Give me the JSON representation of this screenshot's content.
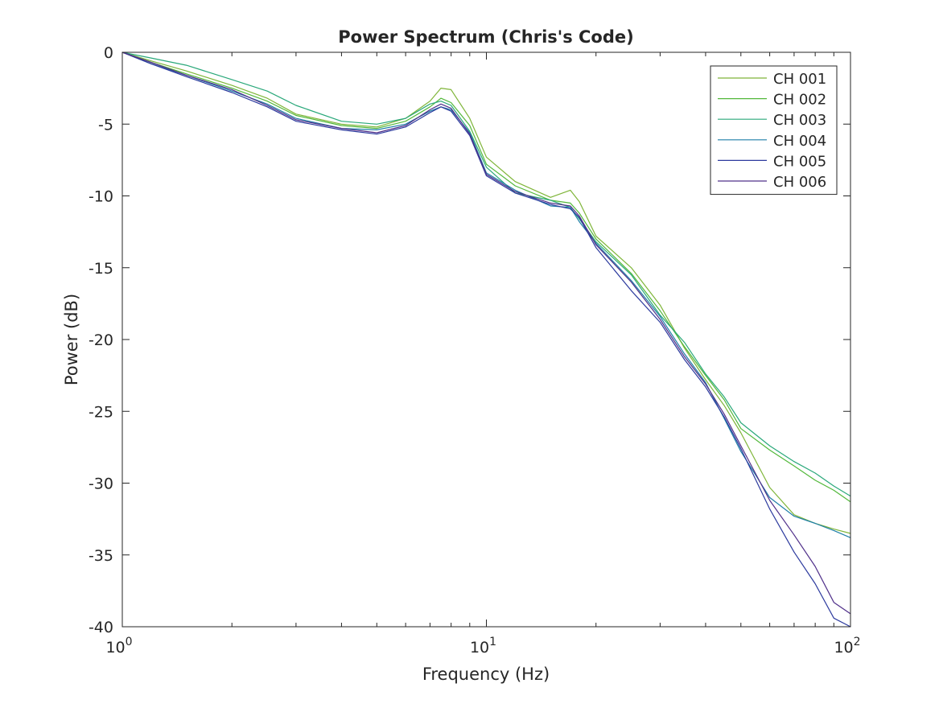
{
  "chart_data": {
    "type": "line",
    "title": "Power Spectrum (Chris's Code)",
    "xlabel": "Frequency (Hz)",
    "ylabel": "Power (dB)",
    "xscale": "log",
    "xlim": [
      1,
      100
    ],
    "ylim": [
      -40,
      0
    ],
    "yticks": [
      0,
      -5,
      -10,
      -15,
      -20,
      -25,
      -30,
      -35,
      -40
    ],
    "ytick_labels": [
      "0",
      "-5",
      "-10",
      "-15",
      "-20",
      "-25",
      "-30",
      "-35",
      "-40"
    ],
    "xticks": [
      1,
      10,
      100
    ],
    "xtick_labels": [
      {
        "base": "10",
        "exp": "0"
      },
      {
        "base": "10",
        "exp": "1"
      },
      {
        "base": "10",
        "exp": "2"
      }
    ],
    "grid": false,
    "legend_position": "top-right",
    "x": [
      1.0,
      1.2,
      1.5,
      2.0,
      2.5,
      3.0,
      4.0,
      5.0,
      6.0,
      7.0,
      7.5,
      8.0,
      9.0,
      10.0,
      12.0,
      15.0,
      17.0,
      18.0,
      20.0,
      25.0,
      30.0,
      35.0,
      40.0,
      45.0,
      50.0,
      60.0,
      70.0,
      80.0,
      90.0,
      100.0
    ],
    "series": [
      {
        "name": "CH 001",
        "color": "#7fb539",
        "values": [
          0,
          -0.6,
          -1.3,
          -2.3,
          -3.2,
          -4.3,
          -5.0,
          -5.2,
          -4.6,
          -3.4,
          -2.5,
          -2.6,
          -4.6,
          -7.3,
          -9.0,
          -10.1,
          -9.6,
          -10.4,
          -12.8,
          -15.0,
          -17.6,
          -20.6,
          -22.8,
          -24.6,
          -26.5,
          -30.3,
          -32.2,
          -32.8,
          -33.2,
          -33.5
        ]
      },
      {
        "name": "CH 002",
        "color": "#52b83a",
        "values": [
          0,
          -0.7,
          -1.5,
          -2.5,
          -3.4,
          -4.4,
          -5.1,
          -5.3,
          -4.8,
          -3.8,
          -3.2,
          -3.5,
          -5.1,
          -7.8,
          -9.3,
          -10.3,
          -10.5,
          -11.2,
          -13.0,
          -15.4,
          -18.0,
          -20.5,
          -22.5,
          -24.2,
          -26.2,
          -27.7,
          -28.8,
          -29.8,
          -30.5,
          -31.3
        ]
      },
      {
        "name": "CH 003",
        "color": "#2aa87a",
        "values": [
          0,
          -0.4,
          -0.9,
          -1.9,
          -2.7,
          -3.7,
          -4.8,
          -5.0,
          -4.6,
          -3.6,
          -3.4,
          -3.7,
          -5.5,
          -8.0,
          -9.8,
          -10.3,
          -10.8,
          -11.6,
          -13.2,
          -15.5,
          -18.3,
          -20.2,
          -22.4,
          -24.0,
          -25.8,
          -27.4,
          -28.5,
          -29.3,
          -30.2,
          -30.9
        ]
      },
      {
        "name": "CH 004",
        "color": "#1f7fa8",
        "values": [
          0,
          -0.8,
          -1.6,
          -2.7,
          -3.6,
          -4.6,
          -5.3,
          -5.4,
          -5.0,
          -4.1,
          -3.8,
          -4.0,
          -5.6,
          -8.4,
          -9.6,
          -10.7,
          -10.8,
          -11.8,
          -13.3,
          -15.9,
          -18.4,
          -21.0,
          -23.0,
          -25.5,
          -27.8,
          -31.0,
          -32.3,
          -32.8,
          -33.3,
          -33.8
        ]
      },
      {
        "name": "CH 005",
        "color": "#2c3a9e",
        "values": [
          0,
          -0.8,
          -1.7,
          -2.8,
          -3.8,
          -4.8,
          -5.4,
          -5.7,
          -5.2,
          -4.2,
          -3.8,
          -4.1,
          -5.8,
          -8.6,
          -9.8,
          -10.6,
          -10.9,
          -11.5,
          -13.6,
          -16.6,
          -18.8,
          -21.4,
          -23.3,
          -25.4,
          -27.6,
          -31.8,
          -34.8,
          -37.0,
          -39.4,
          -40.0
        ]
      },
      {
        "name": "CH 006",
        "color": "#50308a",
        "values": [
          0,
          -0.7,
          -1.6,
          -2.6,
          -3.7,
          -4.7,
          -5.3,
          -5.6,
          -5.1,
          -4.0,
          -3.6,
          -3.9,
          -5.7,
          -8.5,
          -9.7,
          -10.5,
          -10.7,
          -11.4,
          -13.4,
          -16.0,
          -18.6,
          -21.2,
          -23.1,
          -25.2,
          -27.4,
          -31.2,
          -33.6,
          -35.8,
          -38.3,
          -39.1
        ]
      }
    ]
  }
}
